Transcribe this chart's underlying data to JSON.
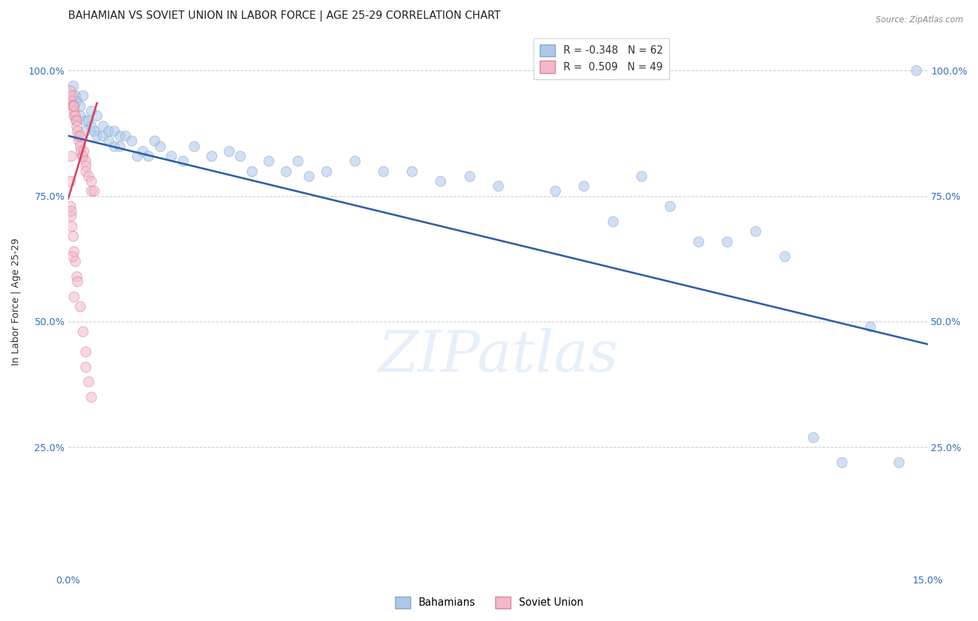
{
  "title": "BAHAMIAN VS SOVIET UNION IN LABOR FORCE | AGE 25-29 CORRELATION CHART",
  "source": "Source: ZipAtlas.com",
  "ylabel": "In Labor Force | Age 25-29",
  "x_min": 0.0,
  "x_max": 0.15,
  "y_min": 0.0,
  "y_max": 1.08,
  "watermark": "ZIPatlas",
  "legend_entries": [
    {
      "label": "R = -0.348   N = 62",
      "color": "#aec6e8"
    },
    {
      "label": "R =  0.509   N = 49",
      "color": "#f4b8c8"
    }
  ],
  "legend_bottom": [
    "Bahamians",
    "Soviet Union"
  ],
  "blue_scatter_x": [
    0.0008,
    0.001,
    0.0012,
    0.0015,
    0.002,
    0.002,
    0.0025,
    0.003,
    0.003,
    0.0035,
    0.004,
    0.004,
    0.0045,
    0.005,
    0.005,
    0.006,
    0.006,
    0.007,
    0.007,
    0.008,
    0.008,
    0.009,
    0.009,
    0.01,
    0.011,
    0.012,
    0.013,
    0.014,
    0.015,
    0.016,
    0.018,
    0.02,
    0.022,
    0.025,
    0.028,
    0.03,
    0.032,
    0.035,
    0.038,
    0.04,
    0.042,
    0.045,
    0.05,
    0.055,
    0.06,
    0.065,
    0.07,
    0.075,
    0.085,
    0.09,
    0.095,
    0.1,
    0.105,
    0.11,
    0.115,
    0.12,
    0.125,
    0.13,
    0.135,
    0.14,
    0.145,
    0.148
  ],
  "blue_scatter_y": [
    0.97,
    0.93,
    0.95,
    0.94,
    0.93,
    0.91,
    0.95,
    0.9,
    0.88,
    0.9,
    0.89,
    0.92,
    0.88,
    0.87,
    0.91,
    0.89,
    0.87,
    0.88,
    0.86,
    0.85,
    0.88,
    0.87,
    0.85,
    0.87,
    0.86,
    0.83,
    0.84,
    0.83,
    0.86,
    0.85,
    0.83,
    0.82,
    0.85,
    0.83,
    0.84,
    0.83,
    0.8,
    0.82,
    0.8,
    0.82,
    0.79,
    0.8,
    0.82,
    0.8,
    0.8,
    0.78,
    0.79,
    0.77,
    0.76,
    0.77,
    0.7,
    0.79,
    0.73,
    0.66,
    0.66,
    0.68,
    0.63,
    0.27,
    0.22,
    0.49,
    0.22,
    1.0
  ],
  "pink_scatter_x": [
    0.0002,
    0.0003,
    0.0004,
    0.0005,
    0.0006,
    0.0007,
    0.0008,
    0.0009,
    0.001,
    0.001,
    0.0012,
    0.0013,
    0.0014,
    0.0015,
    0.0016,
    0.0017,
    0.0018,
    0.002,
    0.002,
    0.0022,
    0.0024,
    0.0025,
    0.0026,
    0.003,
    0.003,
    0.003,
    0.0035,
    0.004,
    0.004,
    0.0045,
    0.0003,
    0.0004,
    0.0005,
    0.0006,
    0.0008,
    0.001,
    0.0012,
    0.0014,
    0.0016,
    0.002,
    0.0025,
    0.003,
    0.003,
    0.0035,
    0.004,
    0.0005,
    0.0005,
    0.0007,
    0.001
  ],
  "pink_scatter_y": [
    0.95,
    0.94,
    0.96,
    0.94,
    0.95,
    0.93,
    0.93,
    0.91,
    0.92,
    0.93,
    0.91,
    0.9,
    0.9,
    0.89,
    0.88,
    0.87,
    0.86,
    0.87,
    0.85,
    0.84,
    0.83,
    0.83,
    0.84,
    0.82,
    0.81,
    0.8,
    0.79,
    0.78,
    0.76,
    0.76,
    0.78,
    0.73,
    0.71,
    0.69,
    0.67,
    0.64,
    0.62,
    0.59,
    0.58,
    0.53,
    0.48,
    0.44,
    0.41,
    0.38,
    0.35,
    0.83,
    0.72,
    0.63,
    0.55
  ],
  "blue_line_x": [
    0.0,
    0.15
  ],
  "blue_line_y": [
    0.87,
    0.455
  ],
  "pink_line_x": [
    0.0,
    0.005
  ],
  "pink_line_y": [
    0.745,
    0.935
  ],
  "scatter_size": 110,
  "scatter_alpha": 0.55,
  "blue_color": "#aec6e8",
  "pink_color": "#f4b8c8",
  "blue_line_color": "#2d5fa8",
  "pink_line_color": "#d94060",
  "grid_color": "#cccccc",
  "background_color": "#ffffff",
  "title_fontsize": 11,
  "axis_label_fontsize": 10,
  "tick_fontsize": 10
}
